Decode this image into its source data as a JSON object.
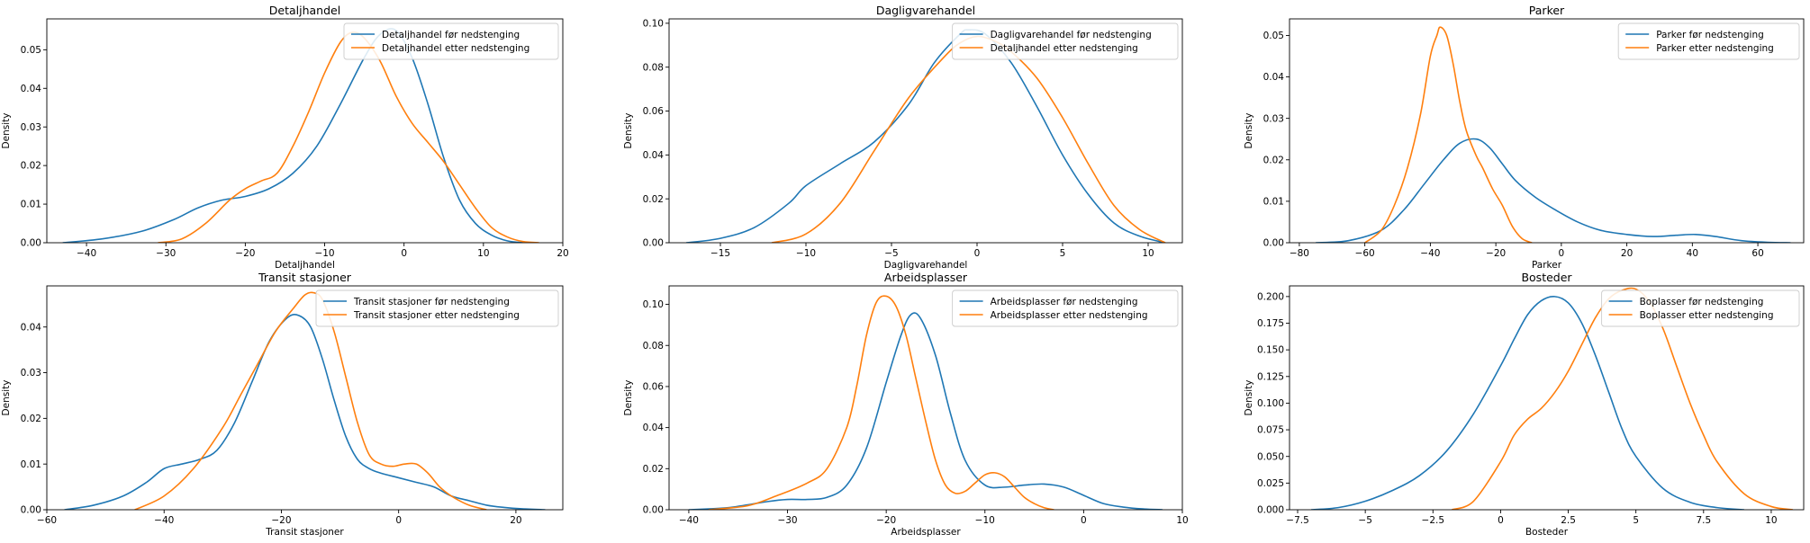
{
  "chart_data": [
    {
      "type": "line",
      "title": "Detaljhandel",
      "xlabel": "Detaljhandel",
      "ylabel": "Density",
      "xlim": [
        -45,
        20
      ],
      "ylim": [
        0,
        0.058
      ],
      "xticks": [
        -40,
        -30,
        -20,
        -10,
        0,
        10,
        20
      ],
      "yticks": [
        0.0,
        0.01,
        0.02,
        0.03,
        0.04,
        0.05
      ],
      "ytick_decimals": 2,
      "legend": "top-right",
      "series": [
        {
          "name": "Detaljhandel før nedstenging",
          "color": "#1f77b4",
          "x": [
            -43,
            -38,
            -33,
            -29,
            -26,
            -23,
            -20,
            -17,
            -14,
            -11,
            -8,
            -5,
            -3,
            -1,
            1,
            3,
            5,
            7,
            9,
            11,
            13,
            15
          ],
          "y": [
            0,
            0.001,
            0.003,
            0.006,
            0.009,
            0.011,
            0.012,
            0.014,
            0.018,
            0.025,
            0.036,
            0.048,
            0.054,
            0.055,
            0.048,
            0.036,
            0.022,
            0.011,
            0.005,
            0.002,
            0.0005,
            0
          ]
        },
        {
          "name": "Detaljhandel etter nedstenging",
          "color": "#ff7f0e",
          "x": [
            -31,
            -28,
            -25,
            -22,
            -20,
            -18,
            -16,
            -14,
            -12,
            -10,
            -8,
            -6.5,
            -5,
            -3,
            -1,
            1,
            3,
            5,
            7,
            9,
            11,
            13,
            15,
            17
          ],
          "y": [
            0,
            0.001,
            0.005,
            0.011,
            0.014,
            0.016,
            0.018,
            0.025,
            0.034,
            0.044,
            0.052,
            0.0545,
            0.053,
            0.047,
            0.038,
            0.031,
            0.026,
            0.021,
            0.015,
            0.009,
            0.004,
            0.0015,
            0.0003,
            0
          ]
        }
      ]
    },
    {
      "type": "line",
      "title": "Dagligvarehandel",
      "xlabel": "Dagligvarehandel",
      "ylabel": "Density",
      "xlim": [
        -18,
        12
      ],
      "ylim": [
        0,
        0.102
      ],
      "xticks": [
        -15,
        -10,
        -5,
        0,
        5,
        10
      ],
      "yticks": [
        0.0,
        0.02,
        0.04,
        0.06,
        0.08,
        0.1
      ],
      "ytick_decimals": 2,
      "legend": "top-right",
      "series": [
        {
          "name": "Dagligvarehandel før nedstenging",
          "color": "#1f77b4",
          "x": [
            -17,
            -15,
            -13,
            -11,
            -10,
            -8,
            -6,
            -4,
            -2.5,
            -1,
            -0.5,
            0.5,
            2,
            3.5,
            5,
            6.5,
            8,
            9.5,
            11
          ],
          "y": [
            0,
            0.002,
            0.007,
            0.018,
            0.026,
            0.036,
            0.046,
            0.063,
            0.082,
            0.095,
            0.097,
            0.095,
            0.082,
            0.062,
            0.04,
            0.022,
            0.009,
            0.003,
            0
          ]
        },
        {
          "name": "Detaljhandel etter nedstenging",
          "color": "#ff7f0e",
          "x": [
            -12,
            -10,
            -8,
            -6,
            -4,
            -2,
            -1,
            0,
            1,
            2,
            3.5,
            5,
            6.5,
            8,
            9.5,
            11
          ],
          "y": [
            0,
            0.004,
            0.018,
            0.042,
            0.066,
            0.084,
            0.091,
            0.094,
            0.092,
            0.087,
            0.075,
            0.057,
            0.036,
            0.017,
            0.006,
            0
          ]
        }
      ]
    },
    {
      "type": "line",
      "title": "Parker",
      "xlabel": "Parker",
      "ylabel": "Density",
      "xlim": [
        -83,
        74
      ],
      "ylim": [
        0,
        0.054
      ],
      "xticks": [
        -80,
        -60,
        -40,
        -20,
        0,
        20,
        40,
        60
      ],
      "yticks": [
        0.0,
        0.01,
        0.02,
        0.03,
        0.04,
        0.05
      ],
      "ytick_decimals": 2,
      "legend": "top-right",
      "series": [
        {
          "name": "Parker før nedstenging",
          "color": "#1f77b4",
          "x": [
            -75,
            -65,
            -55,
            -48,
            -42,
            -36,
            -31,
            -26,
            -22,
            -18,
            -14,
            -8,
            -2,
            5,
            12,
            20,
            28,
            35,
            41,
            47,
            55,
            63,
            70
          ],
          "y": [
            0,
            0.0005,
            0.003,
            0.008,
            0.014,
            0.02,
            0.024,
            0.025,
            0.023,
            0.019,
            0.015,
            0.011,
            0.008,
            0.005,
            0.003,
            0.002,
            0.0015,
            0.0018,
            0.002,
            0.0015,
            0.0005,
            0.0001,
            0
          ]
        },
        {
          "name": "Parker etter nedstenging",
          "color": "#ff7f0e",
          "x": [
            -60,
            -55,
            -51,
            -47,
            -43,
            -40,
            -38,
            -37,
            -35,
            -33,
            -31,
            -29,
            -26,
            -24,
            -21,
            -18,
            -15,
            -12,
            -9
          ],
          "y": [
            0,
            0.003,
            0.009,
            0.018,
            0.031,
            0.045,
            0.05,
            0.052,
            0.05,
            0.043,
            0.034,
            0.027,
            0.021,
            0.018,
            0.013,
            0.009,
            0.004,
            0.001,
            0
          ]
        }
      ]
    },
    {
      "type": "line",
      "title": "Transit stasjoner",
      "xlabel": "Transit stasjoner",
      "ylabel": "Density",
      "xlim": [
        -60,
        28
      ],
      "ylim": [
        0,
        0.049
      ],
      "xticks": [
        -60,
        -40,
        -20,
        0,
        20
      ],
      "yticks": [
        0.0,
        0.01,
        0.02,
        0.03,
        0.04
      ],
      "ytick_decimals": 2,
      "legend": "top-right",
      "series": [
        {
          "name": "Transit stasjoner før nedstenging",
          "color": "#1f77b4",
          "x": [
            -57,
            -52,
            -47,
            -43,
            -40,
            -37,
            -34,
            -31,
            -28,
            -25,
            -22,
            -19,
            -17,
            -15,
            -13,
            -11,
            -9,
            -7,
            -5,
            -3,
            0,
            3,
            6,
            9,
            12,
            15,
            18,
            21,
            25
          ],
          "y": [
            0,
            0.001,
            0.003,
            0.006,
            0.009,
            0.01,
            0.011,
            0.013,
            0.019,
            0.028,
            0.037,
            0.042,
            0.0425,
            0.04,
            0.033,
            0.024,
            0.016,
            0.011,
            0.009,
            0.008,
            0.007,
            0.006,
            0.005,
            0.003,
            0.002,
            0.001,
            0.0005,
            0.0002,
            0
          ]
        },
        {
          "name": "Transit stasjoner etter nedstenging",
          "color": "#ff7f0e",
          "x": [
            -45,
            -40,
            -35,
            -30,
            -27,
            -24,
            -21,
            -18,
            -16,
            -14.5,
            -13,
            -11,
            -9,
            -7,
            -5,
            -3,
            -1,
            1,
            3,
            5,
            7,
            9,
            12,
            15
          ],
          "y": [
            0,
            0.003,
            0.009,
            0.018,
            0.025,
            0.032,
            0.039,
            0.044,
            0.047,
            0.0475,
            0.046,
            0.039,
            0.029,
            0.019,
            0.012,
            0.01,
            0.0095,
            0.01,
            0.01,
            0.008,
            0.005,
            0.003,
            0.001,
            0
          ]
        }
      ]
    },
    {
      "type": "line",
      "title": "Arbeidsplasser",
      "xlabel": "Arbeidsplasser",
      "ylabel": "Density",
      "xlim": [
        -42,
        10
      ],
      "ylim": [
        0,
        0.109
      ],
      "xticks": [
        -40,
        -30,
        -20,
        -10,
        0,
        10
      ],
      "yticks": [
        0.0,
        0.02,
        0.04,
        0.06,
        0.08,
        0.1
      ],
      "ytick_decimals": 2,
      "legend": "top-right",
      "series": [
        {
          "name": "Arbeidsplasser før nedstenging",
          "color": "#1f77b4",
          "x": [
            -40,
            -36,
            -32,
            -30,
            -28,
            -26,
            -24,
            -22,
            -20,
            -18.5,
            -17.5,
            -16.5,
            -15,
            -13.5,
            -12,
            -10,
            -8,
            -6,
            -4,
            -2,
            0,
            2,
            4,
            6,
            8
          ],
          "y": [
            0,
            0.001,
            0.004,
            0.005,
            0.005,
            0.006,
            0.012,
            0.03,
            0.062,
            0.085,
            0.095,
            0.093,
            0.075,
            0.047,
            0.024,
            0.012,
            0.011,
            0.012,
            0.0125,
            0.011,
            0.007,
            0.003,
            0.0013,
            0.0004,
            0
          ]
        },
        {
          "name": "Arbeidsplasser etter nedstenging",
          "color": "#ff7f0e",
          "x": [
            -38,
            -34,
            -31,
            -28,
            -26,
            -24,
            -23,
            -22,
            -21,
            -20,
            -19,
            -18,
            -17,
            -16,
            -15,
            -14,
            -13,
            -12,
            -11,
            -10,
            -9,
            -8,
            -7,
            -6,
            -5,
            -4,
            -3
          ],
          "y": [
            0,
            0.002,
            0.007,
            0.013,
            0.02,
            0.04,
            0.06,
            0.085,
            0.101,
            0.104,
            0.099,
            0.085,
            0.064,
            0.043,
            0.024,
            0.012,
            0.008,
            0.009,
            0.013,
            0.017,
            0.018,
            0.016,
            0.011,
            0.006,
            0.003,
            0.001,
            0
          ]
        }
      ]
    },
    {
      "type": "line",
      "title": "Bosteder",
      "xlabel": "Bosteder",
      "ylabel": "Density",
      "xlim": [
        -7.8,
        11.2
      ],
      "ylim": [
        0,
        0.21
      ],
      "xticks": [
        -7.5,
        -5.0,
        -2.5,
        0.0,
        2.5,
        5.0,
        7.5,
        10.0
      ],
      "yticks": [
        0.0,
        0.025,
        0.05,
        0.075,
        0.1,
        0.125,
        0.15,
        0.175,
        0.2
      ],
      "ytick_decimals": 3,
      "legend": "top-right",
      "series": [
        {
          "name": "Boplasser før nedstenging",
          "color": "#1f77b4",
          "x": [
            -7,
            -6,
            -5,
            -4,
            -3,
            -2,
            -1,
            0,
            0.5,
            1,
            1.5,
            2,
            2.5,
            3,
            3.5,
            4,
            4.5,
            5,
            6,
            7,
            8,
            9
          ],
          "y": [
            0,
            0.002,
            0.008,
            0.018,
            0.032,
            0.055,
            0.09,
            0.135,
            0.16,
            0.183,
            0.196,
            0.2,
            0.194,
            0.175,
            0.145,
            0.11,
            0.075,
            0.05,
            0.02,
            0.007,
            0.002,
            0
          ]
        },
        {
          "name": "Boplasser etter nedstenging",
          "color": "#ff7f0e",
          "x": [
            -1.8,
            -1,
            0,
            0.5,
            1,
            1.5,
            2,
            2.5,
            3,
            3.5,
            4,
            4.5,
            5,
            5.5,
            6,
            6.5,
            7,
            7.5,
            8,
            9,
            10,
            10.8
          ],
          "y": [
            0,
            0.008,
            0.045,
            0.07,
            0.085,
            0.095,
            0.11,
            0.13,
            0.155,
            0.18,
            0.198,
            0.206,
            0.207,
            0.195,
            0.17,
            0.135,
            0.1,
            0.07,
            0.045,
            0.015,
            0.003,
            0
          ]
        }
      ]
    }
  ]
}
